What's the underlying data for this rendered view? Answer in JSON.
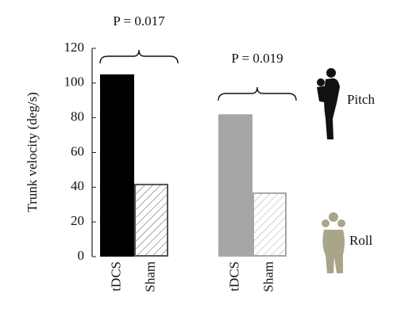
{
  "chart_data": {
    "type": "bar",
    "y_label": "Trunk velocity (deg/s)",
    "categories": [
      "tDCS",
      "Sham"
    ],
    "series": [
      {
        "name": "Pitch",
        "color": "#000000",
        "values": [
          105,
          42
        ],
        "annotation": "P = 0.017"
      },
      {
        "name": "Roll",
        "color": "#a6a6a6",
        "values": [
          82,
          37
        ],
        "annotation": "P = 0.019"
      }
    ],
    "ylim": [
      0,
      120
    ],
    "yticks": [
      0,
      20,
      40,
      60,
      80,
      100,
      120
    ]
  }
}
